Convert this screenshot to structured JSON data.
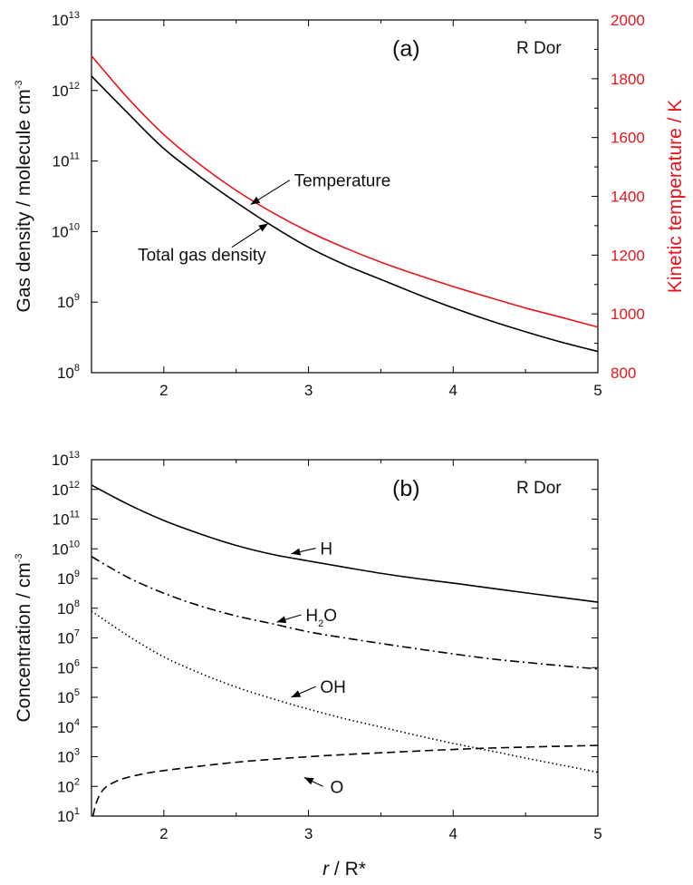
{
  "colors": {
    "temperature": "#e8141b",
    "axis": "#000000",
    "right_axis": "#e8141b"
  },
  "chart_data": [
    {
      "type": "line",
      "panel_label": "(a)",
      "star_name": "R Dor",
      "xlabel": "",
      "xlim": [
        1.5,
        5
      ],
      "xticks": [
        "2",
        "3",
        "4",
        "5"
      ],
      "ylabel": "Gas density / molecule cm",
      "ylabel_sup": "-3",
      "yscale": "log",
      "ylim": [
        100000000,
        10000000000000
      ],
      "yticks": [
        {
          "base": "10",
          "exp": "8"
        },
        {
          "base": "10",
          "exp": "9"
        },
        {
          "base": "10",
          "exp": "10"
        },
        {
          "base": "10",
          "exp": "11"
        },
        {
          "base": "10",
          "exp": "12"
        },
        {
          "base": "10",
          "exp": "13"
        }
      ],
      "y2label": "Kinetic temperature / K",
      "y2lim": [
        800,
        2000
      ],
      "y2ticks": [
        "800",
        "1000",
        "1200",
        "1400",
        "1600",
        "1800",
        "2000"
      ],
      "series": [
        {
          "name": "Total gas density",
          "axis": "left",
          "x": [
            1.5,
            1.75,
            2.0,
            2.25,
            2.5,
            2.75,
            3.0,
            3.25,
            3.5,
            3.75,
            4.0,
            4.25,
            4.5,
            4.75,
            5.0
          ],
          "y": [
            1600000000000.0,
            480000000000.0,
            150000000000.0,
            60000000000.0,
            26000000000.0,
            12000000000.0,
            6000000000.0,
            3400000000.0,
            2100000000.0,
            1300000000.0,
            830000000.0,
            550000000.0,
            380000000.0,
            270000000.0,
            200000000.0
          ]
        },
        {
          "name": "Temperature",
          "axis": "right",
          "x": [
            1.5,
            1.75,
            2.0,
            2.25,
            2.5,
            2.75,
            3.0,
            3.25,
            3.5,
            3.75,
            4.0,
            4.25,
            4.5,
            4.75,
            5.0
          ],
          "y": [
            1878,
            1735,
            1610,
            1508,
            1420,
            1345,
            1280,
            1225,
            1176,
            1133,
            1093,
            1056,
            1020,
            988,
            955
          ]
        }
      ],
      "annotations": [
        {
          "text": "Temperature"
        },
        {
          "text": "Total gas density"
        }
      ]
    },
    {
      "type": "line",
      "panel_label": "(b)",
      "star_name": "R Dor",
      "xlabel": "/ R*",
      "xlabel_italic": "r",
      "xlim": [
        1.5,
        5
      ],
      "xticks": [
        "2",
        "3",
        "4",
        "5"
      ],
      "ylabel": "Concentration / cm",
      "ylabel_sup": "-3",
      "yscale": "log",
      "ylim": [
        10,
        10000000000000
      ],
      "yticks": [
        {
          "base": "10",
          "exp": "1"
        },
        {
          "base": "10",
          "exp": "2"
        },
        {
          "base": "10",
          "exp": "3"
        },
        {
          "base": "10",
          "exp": "4"
        },
        {
          "base": "10",
          "exp": "5"
        },
        {
          "base": "10",
          "exp": "6"
        },
        {
          "base": "10",
          "exp": "7"
        },
        {
          "base": "10",
          "exp": "8"
        },
        {
          "base": "10",
          "exp": "9"
        },
        {
          "base": "10",
          "exp": "10"
        },
        {
          "base": "10",
          "exp": "11"
        },
        {
          "base": "10",
          "exp": "12"
        },
        {
          "base": "10",
          "exp": "13"
        }
      ],
      "series": [
        {
          "name": "H",
          "style": "solid",
          "x": [
            1.5,
            1.75,
            2.0,
            2.25,
            2.5,
            2.75,
            3.0,
            3.25,
            3.5,
            3.75,
            4.0,
            4.25,
            4.5,
            4.75,
            5.0
          ],
          "y": [
            1400000000000.0,
            320000000000.0,
            90000000000.0,
            32000000000.0,
            13000000000.0,
            6500000000.0,
            3900000000.0,
            2400000000.0,
            1500000000.0,
            1000000000.0,
            700000000.0,
            480000000.0,
            330000000.0,
            230000000.0,
            160000000.0
          ]
        },
        {
          "name": "H2O",
          "label_base": "H",
          "label_sub": "2",
          "label_tail": "O",
          "style": "dashdot",
          "x": [
            1.5,
            1.75,
            2.0,
            2.25,
            2.5,
            2.75,
            3.0,
            3.25,
            3.5,
            3.75,
            4.0,
            4.25,
            4.5,
            4.75,
            5.0
          ],
          "y": [
            5500000000.0,
            1100000000.0,
            320000000.0,
            120000000.0,
            55000000.0,
            30000000.0,
            16000000.0,
            10000000.0,
            6500000.0,
            4300000.0,
            2900000.0,
            2000000.0,
            1500000.0,
            1150000.0,
            900000.0
          ]
        },
        {
          "name": "OH",
          "style": "dotted",
          "x": [
            1.5,
            1.75,
            2.0,
            2.25,
            2.5,
            2.75,
            3.0,
            3.25,
            3.5,
            3.75,
            4.0,
            4.25,
            4.5,
            4.75,
            5.0
          ],
          "y": [
            80000000.0,
            12000000.0,
            2300000.0,
            650000.0,
            220000.0,
            90000.0,
            40000.0,
            19000.0,
            10000.0,
            5200.0,
            2800.0,
            1600.0,
            900.0,
            520.0,
            300.0
          ]
        },
        {
          "name": "O",
          "style": "dashed",
          "x": [
            1.51,
            1.53,
            1.56,
            1.6,
            1.7,
            1.85,
            2.0,
            2.25,
            2.5,
            2.75,
            3.0,
            3.25,
            3.5,
            3.75,
            4.0,
            4.25,
            4.5,
            4.75,
            5.0
          ],
          "y": [
            10,
            25,
            55,
            95,
            170,
            260,
            340,
            480,
            650,
            820,
            1000,
            1180,
            1350,
            1550,
            1750,
            1950,
            2100,
            2250,
            2400
          ]
        }
      ]
    }
  ]
}
